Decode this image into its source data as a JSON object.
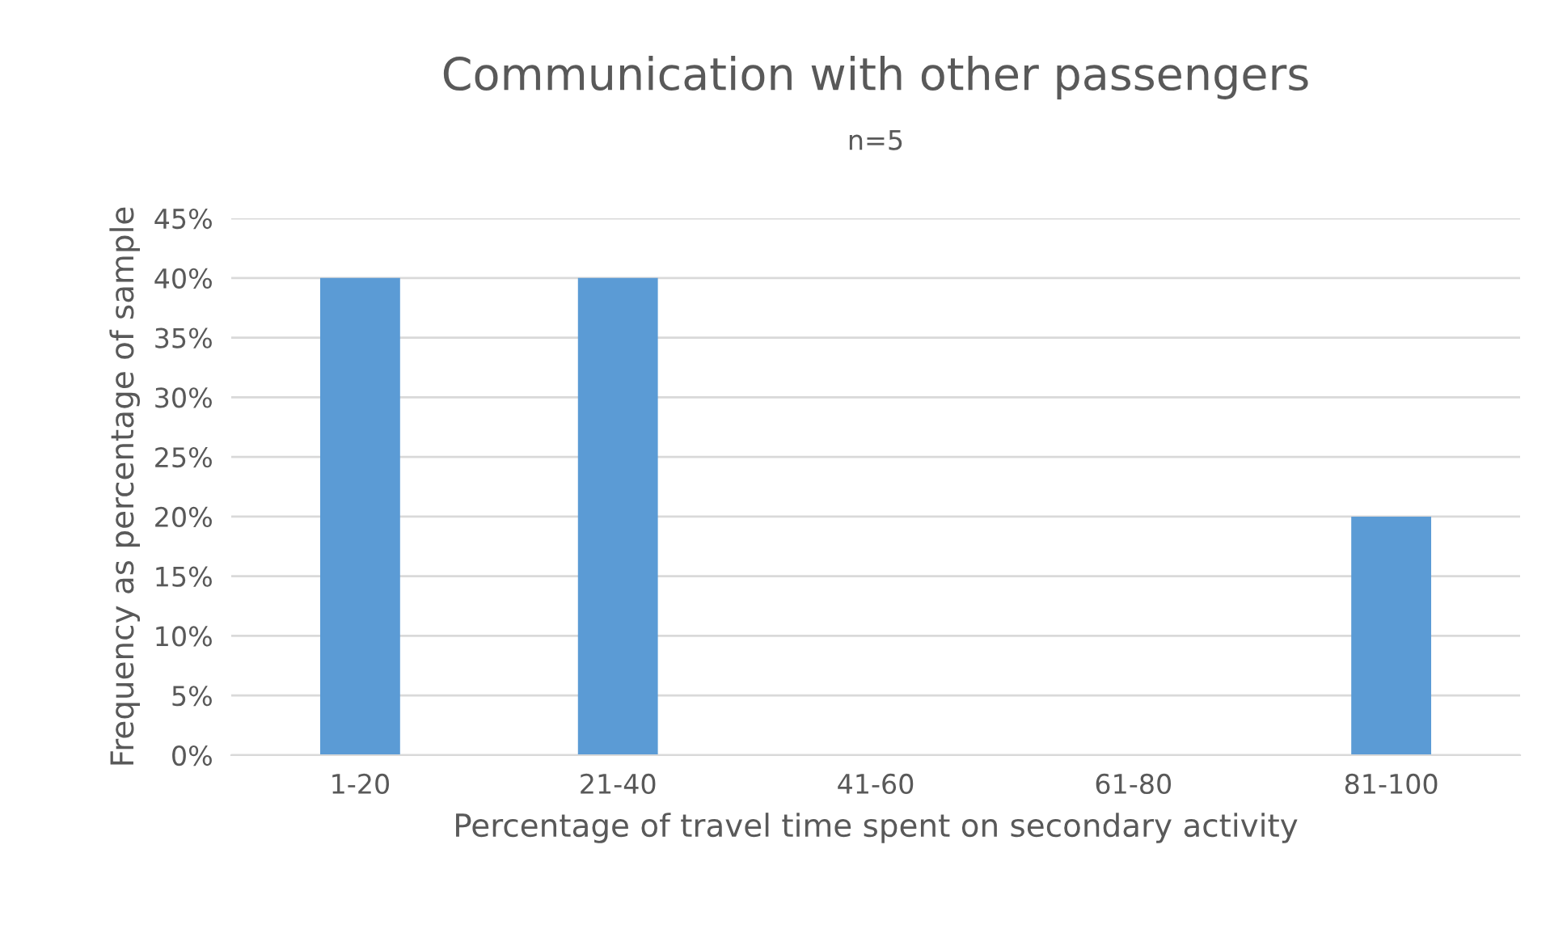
{
  "chart_data": {
    "type": "bar",
    "title": "Communication with other passengers",
    "subtitle": "n=5",
    "xlabel": "Percentage of travel time spent on secondary activity",
    "ylabel": "Frequency as percentage of sample",
    "categories": [
      "1-20",
      "21-40",
      "41-60",
      "61-80",
      "81-100"
    ],
    "values": [
      40,
      40,
      0,
      0,
      20
    ],
    "color": "#5b9bd5",
    "ylim": [
      0,
      45
    ],
    "yticks": [
      {
        "value": 0,
        "label": "0%"
      },
      {
        "value": 5,
        "label": "5%"
      },
      {
        "value": 10,
        "label": "10%"
      },
      {
        "value": 15,
        "label": "15%"
      },
      {
        "value": 20,
        "label": "20%"
      },
      {
        "value": 25,
        "label": "25%"
      },
      {
        "value": 30,
        "label": "30%"
      },
      {
        "value": 35,
        "label": "35%"
      },
      {
        "value": 40,
        "label": "40%"
      },
      {
        "value": 45,
        "label": "45%"
      }
    ],
    "grid": "y",
    "legend": false
  }
}
